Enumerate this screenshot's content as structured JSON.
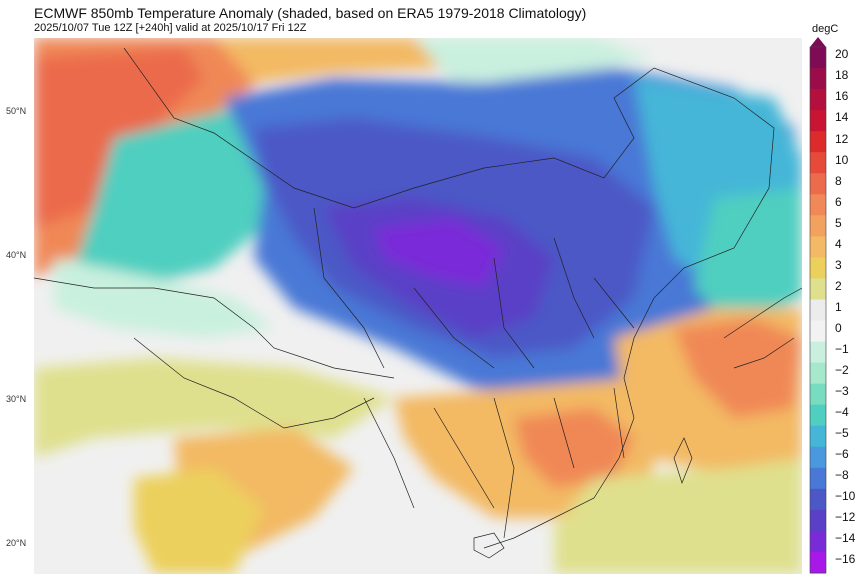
{
  "title": "ECMWF 850mb Temperature Anomaly (shaded, based on ERA5 1979-2018 Climatology)",
  "subtitle": "2025/10/07 Tue 12Z [+240h] valid at 2025/10/17 Fri 12Z",
  "lat_labels": [
    "50°N",
    "40°N",
    "30°N",
    "20°N"
  ],
  "colorbar": {
    "unit": "degC",
    "ticks": [
      "20",
      "18",
      "16",
      "14",
      "12",
      "10",
      "8",
      "6",
      "5",
      "4",
      "3",
      "2",
      "1",
      "0",
      "−1",
      "−2",
      "−3",
      "−4",
      "−5",
      "−6",
      "−8",
      "−10",
      "−12",
      "−14",
      "−16"
    ],
    "colors": [
      "#7f0a55",
      "#9a0d4a",
      "#b4103e",
      "#c91533",
      "#dd2a2a",
      "#e64a3a",
      "#eb6b4c",
      "#f08857",
      "#f2a25e",
      "#f3b964",
      "#ecd05d",
      "#dfe08d",
      "#ececec",
      "#f2f2f2",
      "#c9f0de",
      "#a6e8cc",
      "#78ddc0",
      "#4fcfc0",
      "#45b6d8",
      "#4a98de",
      "#4a78d6",
      "#4b58c6",
      "#5a40c6",
      "#7a2bd8",
      "#a818e8"
    ]
  },
  "map": {
    "base_color": "#f0f0f0",
    "anomaly_colors": {
      "warm_strong": "#eb6b4c",
      "warm": "#f08857",
      "warm_mid": "#f3b964",
      "warm_light": "#ecd05d",
      "yellowgreen": "#dfe08d",
      "neutral": "#f0f0f0",
      "cool_light": "#c9f0de",
      "teal": "#4fcfc0",
      "blue_light": "#45b6d8",
      "blue": "#4a78d6",
      "blue_deep": "#4b58c6",
      "purple": "#5a40c6",
      "violet": "#7a2bd8"
    }
  }
}
